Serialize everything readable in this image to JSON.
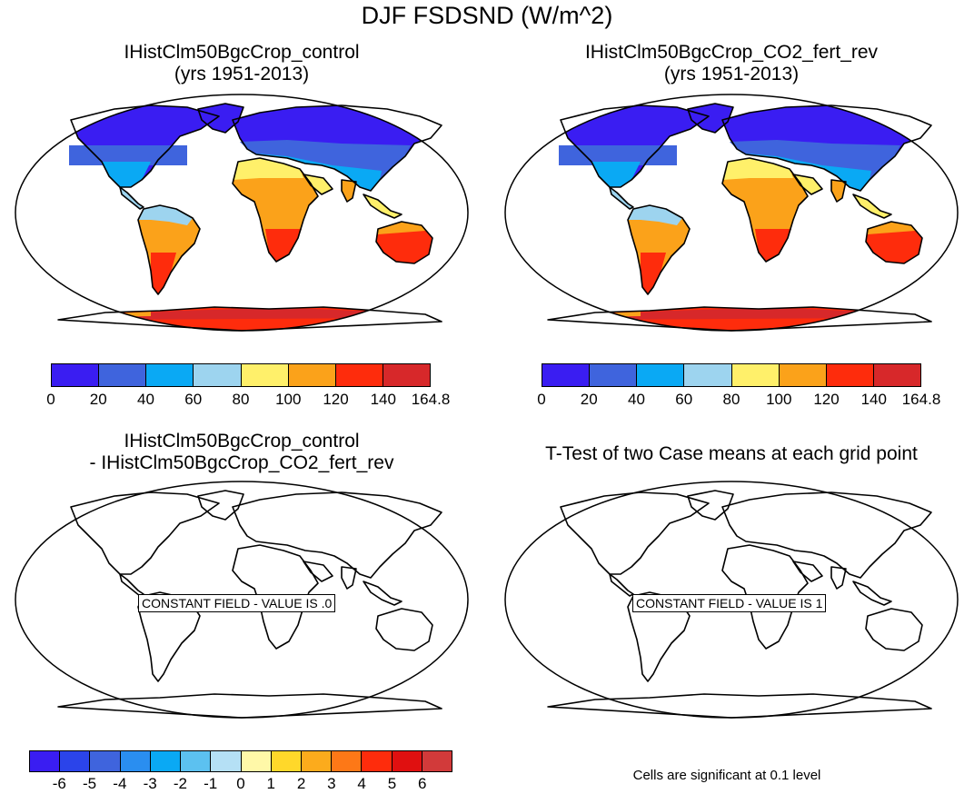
{
  "main_title": "DJF FSDSND (W/m^2)",
  "panels": [
    {
      "title_line1": "IHistClm50BgcCrop_control",
      "title_line2": "(yrs 1951-2013)"
    },
    {
      "title_line1": "IHistClm50BgcCrop_CO2_fert_rev",
      "title_line2": "(yrs 1951-2013)"
    },
    {
      "title_line1": "IHistClm50BgcCrop_control",
      "title_line2": "- IHistClm50BgcCrop_CO2_fert_rev",
      "label": "CONSTANT FIELD - VALUE IS .0"
    },
    {
      "title_line1": "T-Test of two Case means at each grid point",
      "label": "CONSTANT FIELD - VALUE IS 1"
    }
  ],
  "colorbar_top": {
    "labels": [
      "0",
      "20",
      "40",
      "60",
      "80",
      "100",
      "120",
      "140",
      "164.8"
    ],
    "colors": [
      "#3a1df2",
      "#3f64dd",
      "#0aa9f4",
      "#9dd4ef",
      "#fff06a",
      "#fba21a",
      "#fe2c0c",
      "#d7282a"
    ]
  },
  "colorbar_bottom": {
    "labels": [
      "-6",
      "-5",
      "-4",
      "-3",
      "-2",
      "-1",
      "0",
      "1",
      "2",
      "3",
      "4",
      "5",
      "6"
    ],
    "colors": [
      "#3a1df2",
      "#2b44ea",
      "#3f64dd",
      "#2a8ef0",
      "#0aa9f4",
      "#5cc1f0",
      "#b5e0f5",
      "#fff8a8",
      "#ffd82a",
      "#fcab1c",
      "#fd7817",
      "#fe2c0c",
      "#e01010",
      "#d23a3a"
    ]
  },
  "footer_note": "Cells are significant at 0.1 level",
  "map_colors": {
    "north": "#3a1df2",
    "north2": "#3f64dd",
    "mid": "#0aa9f4",
    "mid2": "#9dd4ef",
    "trop": "#fff06a",
    "warm": "#fba21a",
    "hot": "#fe2c0c",
    "hot2": "#d7282a"
  }
}
